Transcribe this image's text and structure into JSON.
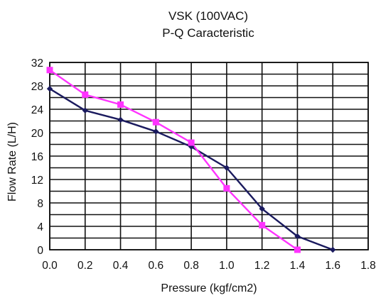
{
  "chart_data": {
    "type": "line",
    "title": "VSK (100VAC)",
    "subtitle": "P-Q Caracteristic",
    "xlabel": "Pressure (kgf/cm2)",
    "ylabel": "Flow Rate (L/H)",
    "xlim": [
      0,
      1.8
    ],
    "ylim": [
      0,
      32
    ],
    "x_ticks": [
      "0.0",
      "0.2",
      "0.4",
      "0.6",
      "0.8",
      "1.0",
      "1.2",
      "1.4",
      "1.6",
      "1.8"
    ],
    "y_ticks": [
      "0",
      "4",
      "8",
      "12",
      "16",
      "20",
      "24",
      "28",
      "32"
    ],
    "grid": true,
    "series": [
      {
        "color": "#1a1a5e",
        "marker": "diamond",
        "points": [
          {
            "x": 0.0,
            "y": 27.5
          },
          {
            "x": 0.2,
            "y": 23.8
          },
          {
            "x": 0.4,
            "y": 22.2
          },
          {
            "x": 0.6,
            "y": 20.2
          },
          {
            "x": 0.8,
            "y": 17.6
          },
          {
            "x": 1.0,
            "y": 14.0
          },
          {
            "x": 1.2,
            "y": 7.0
          },
          {
            "x": 1.4,
            "y": 2.3
          },
          {
            "x": 1.6,
            "y": 0.0
          }
        ]
      },
      {
        "color": "#ff33ff",
        "marker": "square",
        "points": [
          {
            "x": 0.0,
            "y": 30.7
          },
          {
            "x": 0.2,
            "y": 26.5
          },
          {
            "x": 0.4,
            "y": 24.8
          },
          {
            "x": 0.6,
            "y": 21.8
          },
          {
            "x": 0.8,
            "y": 18.3
          },
          {
            "x": 1.0,
            "y": 10.5
          },
          {
            "x": 1.2,
            "y": 4.2
          },
          {
            "x": 1.4,
            "y": 0.0
          }
        ]
      }
    ]
  }
}
